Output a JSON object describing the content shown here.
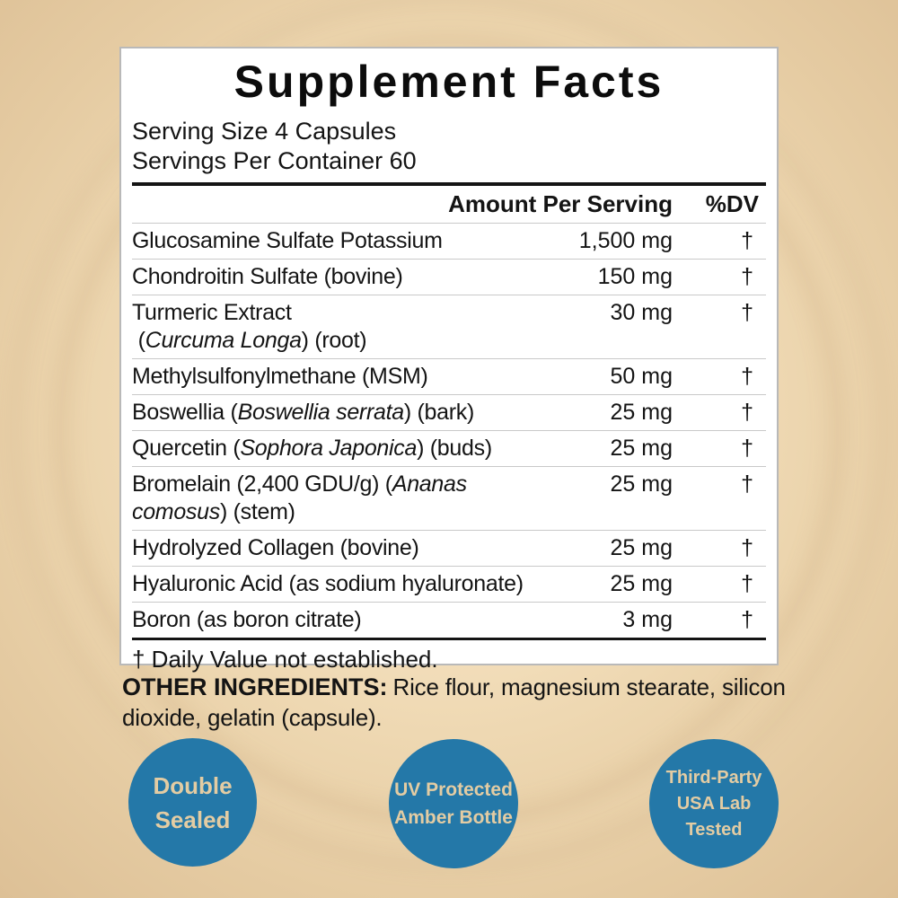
{
  "label": {
    "title": "Supplement Facts",
    "serving_size": "Serving Size 4 Capsules",
    "servings_per_container": "Servings Per Container 60",
    "columns": {
      "amount": "Amount Per Serving",
      "dv": "%DV"
    },
    "rows": [
      {
        "name": "Glucosamine Sulfate Potassium",
        "amount": "1,500 mg",
        "dv": "†"
      },
      {
        "name": "Chondroitin Sulfate (bovine)",
        "amount": "150 mg",
        "dv": "†"
      },
      {
        "name": "Turmeric Extract\n (*Curcuma Longa*) (root)",
        "amount": "30 mg",
        "dv": "†"
      },
      {
        "name": "Methylsulfonylmethane (MSM)",
        "amount": "50 mg",
        "dv": "†"
      },
      {
        "name": "Boswellia (*Boswellia serrata*) (bark)",
        "amount": "25 mg",
        "dv": "†"
      },
      {
        "name": "Quercetin (*Sophora Japonica*) (buds)",
        "amount": "25 mg",
        "dv": "†"
      },
      {
        "name": "Bromelain (2,400 GDU/g) (*Ananas\ncomosus*) (stem)",
        "amount": "25 mg",
        "dv": "†"
      },
      {
        "name": "Hydrolyzed Collagen (bovine)",
        "amount": "25 mg",
        "dv": "†"
      },
      {
        "name": "Hyaluronic Acid (as sodium hyaluronate)",
        "amount": "25 mg",
        "dv": "†"
      },
      {
        "name": "Boron (as boron citrate)",
        "amount": "3 mg",
        "dv": "†"
      }
    ],
    "footnote": "† Daily Value not established."
  },
  "other_ingredients": {
    "label": "OTHER INGREDIENTS:",
    "text": "Rice flour, magnesium stearate, silicon dioxide, gelatin (capsule)."
  },
  "badges": [
    {
      "lines": [
        "Double",
        "Sealed"
      ]
    },
    {
      "lines": [
        "UV Protected",
        "Amber Bottle"
      ]
    },
    {
      "lines": [
        "Third-Party",
        "USA Lab",
        "Tested"
      ]
    }
  ],
  "colors": {
    "badge_blue": "#2478A8",
    "badge_text": "#E3CCA3",
    "background_light": "#F6E3C1",
    "background_dark": "#DDC096",
    "panel_border": "#B9B9B9",
    "separator": "#C9C9C9"
  }
}
